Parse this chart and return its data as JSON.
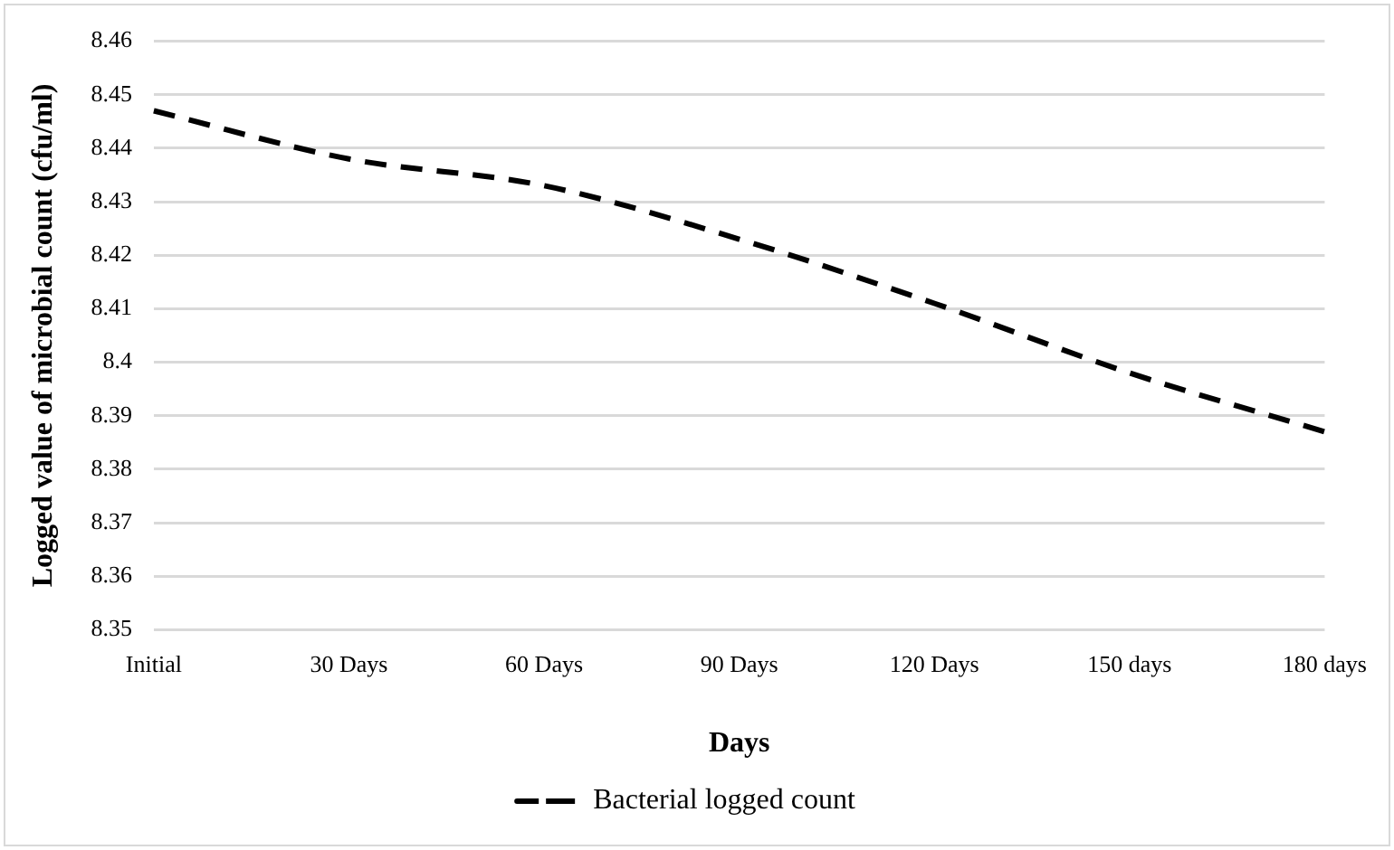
{
  "chart_data": {
    "type": "line",
    "xlabel": "Days",
    "ylabel": "Logged value of microbial count (cfu/ml)",
    "categories": [
      "Initial",
      "30 Days",
      "60 Days",
      "90 Days",
      "120 Days",
      "150 days",
      "180 days"
    ],
    "series": [
      {
        "name": "Bacterial logged count",
        "color": "#000000",
        "values": [
          8.447,
          8.438,
          8.433,
          8.423,
          8.411,
          8.398,
          8.387
        ]
      }
    ],
    "ylim": [
      8.35,
      8.46
    ],
    "yticks": [
      8.35,
      8.36,
      8.37,
      8.38,
      8.39,
      8.4,
      8.41,
      8.42,
      8.43,
      8.44,
      8.45,
      8.46
    ],
    "grid": "y",
    "legend": "bottom",
    "line_style": "dashed",
    "marker": "none"
  }
}
